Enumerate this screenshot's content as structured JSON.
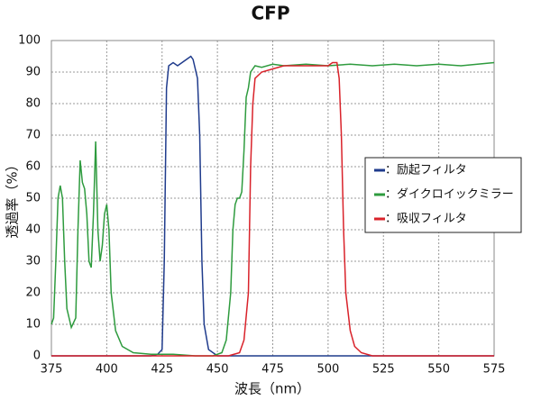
{
  "chart_data": {
    "type": "line",
    "title": "CFP",
    "x_label": "波長（nm）",
    "y_label": "透過率（%）",
    "xlim": [
      375,
      575
    ],
    "xticks": [
      375,
      400,
      425,
      450,
      475,
      500,
      525,
      550,
      575
    ],
    "ylim": [
      0,
      100
    ],
    "yticks": [
      0,
      10,
      20,
      30,
      40,
      50,
      60,
      70,
      80,
      90,
      100
    ],
    "grid": true,
    "legend": "right",
    "series": [
      {
        "name": "：励起フィルタ",
        "color": "#1f3b8c",
        "x": [
          375,
          420,
          423,
          425,
          426,
          427,
          428,
          430,
          432,
          434,
          436,
          438,
          439,
          441,
          442,
          443,
          444,
          446,
          450,
          575
        ],
        "values": [
          0,
          0,
          0.5,
          2,
          30,
          85,
          92,
          93,
          92,
          93,
          94,
          95,
          94,
          88,
          70,
          30,
          10,
          2,
          0,
          0
        ]
      },
      {
        "name": "：ダイクロイックミラー",
        "color": "#2e9b3e",
        "x": [
          375,
          376,
          377,
          378,
          379,
          380,
          381,
          382,
          384,
          386,
          387,
          388,
          389,
          390,
          391,
          392,
          393,
          394,
          395,
          396,
          397,
          398,
          399,
          400,
          401,
          402,
          404,
          407,
          412,
          420,
          430,
          440,
          448,
          452,
          454,
          456,
          457,
          458,
          459,
          460,
          461,
          462,
          463,
          464,
          465,
          467,
          470,
          475,
          480,
          490,
          500,
          510,
          520,
          530,
          540,
          550,
          560,
          575
        ],
        "values": [
          10,
          12,
          30,
          50,
          54,
          50,
          30,
          15,
          9,
          12,
          40,
          62,
          55,
          53,
          45,
          30,
          28,
          45,
          68,
          40,
          30,
          35,
          45,
          48,
          40,
          20,
          8,
          3,
          1,
          0.5,
          0.5,
          0,
          0,
          1,
          5,
          20,
          40,
          48,
          50,
          50,
          52,
          65,
          82,
          85,
          90,
          92,
          91.5,
          92.5,
          92,
          92.5,
          92,
          92.5,
          92,
          92.5,
          92,
          92.5,
          92,
          93
        ]
      },
      {
        "name": "：吸収フィルタ",
        "color": "#d9222a",
        "x": [
          375,
          455,
          460,
          462,
          464,
          465,
          466,
          467,
          470,
          475,
          480,
          490,
          495,
          500,
          502,
          504,
          505,
          506,
          507,
          508,
          510,
          512,
          515,
          520,
          575
        ],
        "values": [
          0,
          0,
          1,
          5,
          20,
          60,
          80,
          88,
          90,
          91,
          92,
          92,
          92,
          92,
          93,
          93,
          88,
          70,
          40,
          20,
          8,
          3,
          1,
          0,
          0
        ]
      }
    ]
  }
}
